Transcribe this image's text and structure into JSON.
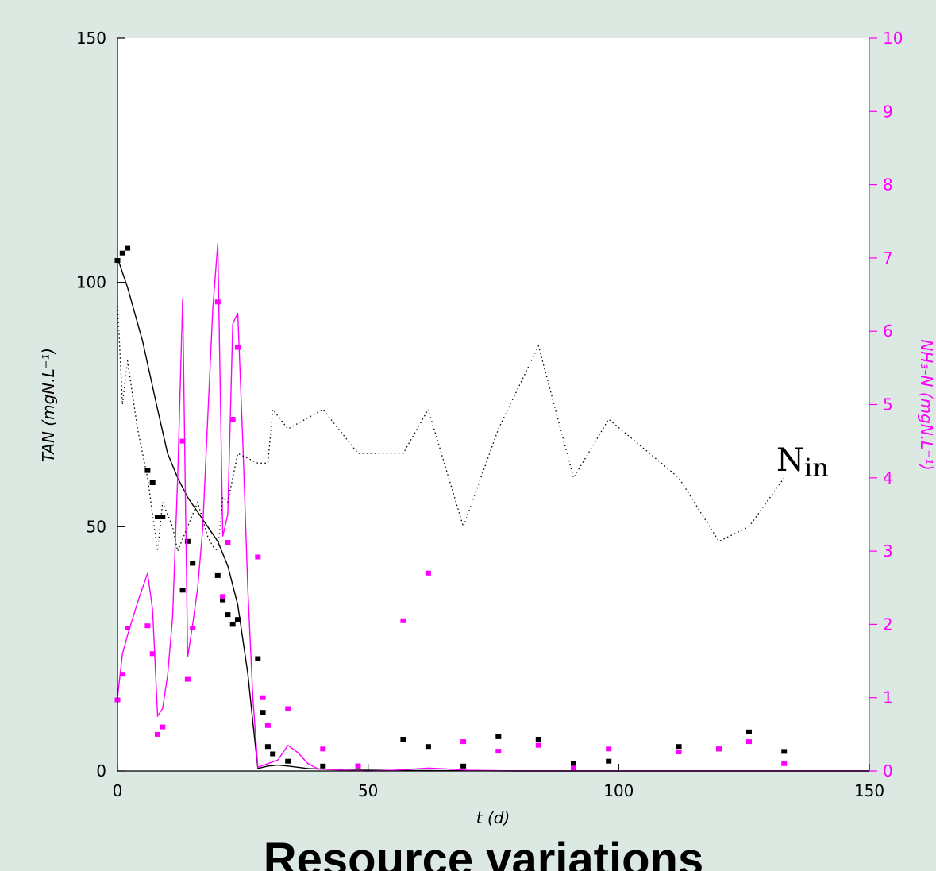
{
  "caption": "Resource variations",
  "chart_data": {
    "type": "scatter",
    "xlabel": "t (d)",
    "ylabel": "TAN (mgN.L⁻¹)",
    "y2label": "NH₃-N (mgN.L⁻¹)",
    "xlim": [
      0,
      150
    ],
    "ylim": [
      0,
      150
    ],
    "y2lim": [
      0,
      10
    ],
    "xticks": [
      "0",
      "50",
      "100",
      "150"
    ],
    "yticks": [
      "0",
      "50",
      "100",
      "150"
    ],
    "y2ticks": [
      "0",
      "1",
      "2",
      "3",
      "4",
      "5",
      "6",
      "7",
      "8",
      "9",
      "10"
    ],
    "annotation": {
      "main": "N",
      "sub": "in"
    },
    "colors": {
      "tan": "#000000",
      "nh3": "#ff00ff",
      "nin": "#000000"
    },
    "series": [
      {
        "kind": "points",
        "axis": "left",
        "color": "#000000",
        "x": [
          0,
          1,
          2,
          6,
          7,
          8,
          9,
          13,
          14,
          15,
          20,
          21,
          22,
          23,
          24,
          28,
          29,
          30,
          31,
          34,
          41,
          48,
          57,
          62,
          69,
          76,
          84,
          91,
          98,
          112,
          120,
          126,
          133
        ],
        "y": [
          104.5,
          106,
          107,
          61.5,
          59,
          52,
          52,
          37,
          47,
          42.5,
          40,
          35,
          32,
          30,
          31,
          23,
          12,
          5,
          3.5,
          2,
          1,
          1,
          6.5,
          5,
          1,
          7,
          6.5,
          1.5,
          2,
          5,
          4.5,
          8,
          4
        ]
      },
      {
        "kind": "points",
        "axis": "right",
        "color": "#ff00ff",
        "x": [
          0,
          1,
          2,
          6,
          7,
          8,
          9,
          13,
          14,
          15,
          20,
          21,
          22,
          23,
          24,
          28,
          29,
          30,
          34,
          41,
          48,
          57,
          62,
          69,
          76,
          84,
          91,
          98,
          112,
          120,
          126,
          133
        ],
        "y": [
          0.97,
          1.32,
          1.95,
          1.98,
          1.6,
          0.5,
          0.6,
          4.5,
          1.25,
          1.95,
          6.4,
          2.38,
          3.12,
          4.8,
          5.78,
          2.92,
          1.0,
          0.62,
          0.85,
          0.3,
          0.07,
          2.05,
          2.7,
          0.4,
          0.27,
          0.35,
          0.04,
          0.3,
          0.26,
          0.3,
          0.4,
          0.1
        ]
      },
      {
        "kind": "line",
        "axis": "left",
        "color": "#000000",
        "x": [
          0,
          2,
          5,
          8,
          10,
          12,
          14,
          16,
          18,
          20,
          22,
          24,
          26,
          27,
          28,
          30,
          32,
          34,
          38,
          45,
          60,
          80,
          100,
          150
        ],
        "y": [
          105,
          99,
          88,
          74,
          65,
          60,
          56,
          53,
          50,
          47,
          42,
          34,
          20,
          10,
          0.5,
          1,
          1.2,
          1,
          0.5,
          0.2,
          0.1,
          0,
          0,
          0
        ]
      },
      {
        "kind": "line",
        "axis": "right",
        "color": "#ff00ff",
        "x": [
          0,
          1,
          2,
          4,
          6,
          7,
          8,
          9,
          10,
          11,
          12,
          13,
          13.5,
          14,
          15,
          16,
          17,
          18,
          19,
          20,
          21,
          22,
          23,
          24,
          25,
          26,
          27,
          28,
          30,
          32,
          34,
          36,
          38,
          40,
          45,
          50,
          55,
          60,
          62,
          65,
          70,
          80,
          100,
          150
        ],
        "y": [
          1.0,
          1.6,
          1.85,
          2.3,
          2.7,
          2.2,
          0.75,
          0.85,
          1.3,
          2.1,
          4.0,
          6.45,
          4.0,
          1.55,
          2.0,
          2.5,
          3.3,
          4.8,
          6.3,
          7.2,
          3.2,
          3.5,
          6.1,
          6.25,
          4.5,
          2.5,
          1.0,
          0.05,
          0.1,
          0.15,
          0.35,
          0.25,
          0.1,
          0.03,
          0.01,
          0.0,
          0.01,
          0.03,
          0.04,
          0.03,
          0.01,
          0.0,
          0.0,
          0.0
        ]
      },
      {
        "kind": "dotted-line",
        "axis": "left",
        "color": "#000000",
        "x": [
          0,
          1,
          2,
          4,
          6,
          8,
          9,
          11,
          12,
          14,
          16,
          18,
          19,
          20,
          21,
          22,
          23,
          24,
          26,
          28,
          30,
          31,
          34,
          41,
          48,
          57,
          62,
          69,
          76,
          84,
          91,
          98,
          112,
          120,
          126,
          133
        ],
        "y": [
          96,
          75,
          84,
          70,
          60,
          45,
          55,
          50,
          45,
          50,
          55,
          48,
          46,
          45,
          56,
          55,
          60,
          65,
          64,
          63,
          63,
          74,
          70,
          74,
          65,
          65,
          74,
          50,
          70,
          87,
          60,
          72,
          60,
          47,
          50,
          60
        ]
      }
    ]
  }
}
